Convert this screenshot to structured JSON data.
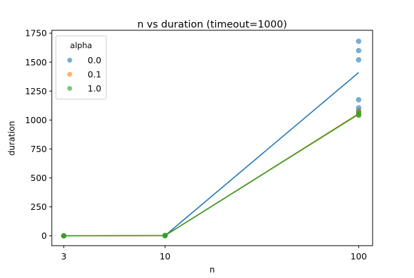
{
  "chart_data": {
    "type": "scatter",
    "title": "n vs duration (timeout=1000)",
    "xlabel": "n",
    "ylabel": "duration",
    "x_scale": "log",
    "x_ticks": [
      3,
      10,
      100
    ],
    "x_tick_labels": [
      "3",
      "10",
      "100"
    ],
    "xlim": [
      2.6,
      118
    ],
    "y_ticks": [
      0,
      250,
      500,
      750,
      1000,
      1250,
      1500,
      1750
    ],
    "y_tick_labels": [
      "0",
      "250",
      "500",
      "750",
      "1000",
      "1250",
      "1500",
      "1750"
    ],
    "ylim": [
      -85,
      1775
    ],
    "grid": false,
    "legend": {
      "title": "alpha",
      "placement": "top-left"
    },
    "series": [
      {
        "name": "0.0",
        "color": "#1f77b4",
        "points": [
          [
            3,
            0
          ],
          [
            3,
            0
          ],
          [
            3,
            0
          ],
          [
            10,
            1
          ],
          [
            10,
            2
          ],
          [
            10,
            3
          ],
          [
            100,
            1680
          ],
          [
            100,
            1600
          ],
          [
            100,
            1520
          ],
          [
            100,
            1175
          ],
          [
            100,
            1105
          ],
          [
            100,
            1080
          ]
        ],
        "line": [
          [
            3,
            0
          ],
          [
            10,
            2
          ],
          [
            100,
            1410
          ]
        ]
      },
      {
        "name": "0.1",
        "color": "#ff7f0e",
        "points": [
          [
            3,
            0
          ],
          [
            3,
            0
          ],
          [
            3,
            0
          ],
          [
            10,
            1
          ],
          [
            10,
            2
          ],
          [
            10,
            3
          ],
          [
            100,
            1075
          ],
          [
            100,
            1055
          ],
          [
            100,
            1045
          ]
        ],
        "line": [
          [
            3,
            0
          ],
          [
            10,
            2
          ],
          [
            100,
            1055
          ]
        ]
      },
      {
        "name": "1.0",
        "color": "#2ca02c",
        "points": [
          [
            3,
            0
          ],
          [
            3,
            0
          ],
          [
            3,
            0
          ],
          [
            10,
            1
          ],
          [
            10,
            2
          ],
          [
            10,
            3
          ],
          [
            100,
            1065
          ],
          [
            100,
            1050
          ],
          [
            100,
            1040
          ]
        ],
        "line": [
          [
            3,
            0
          ],
          [
            10,
            2
          ],
          [
            100,
            1050
          ]
        ]
      }
    ]
  }
}
